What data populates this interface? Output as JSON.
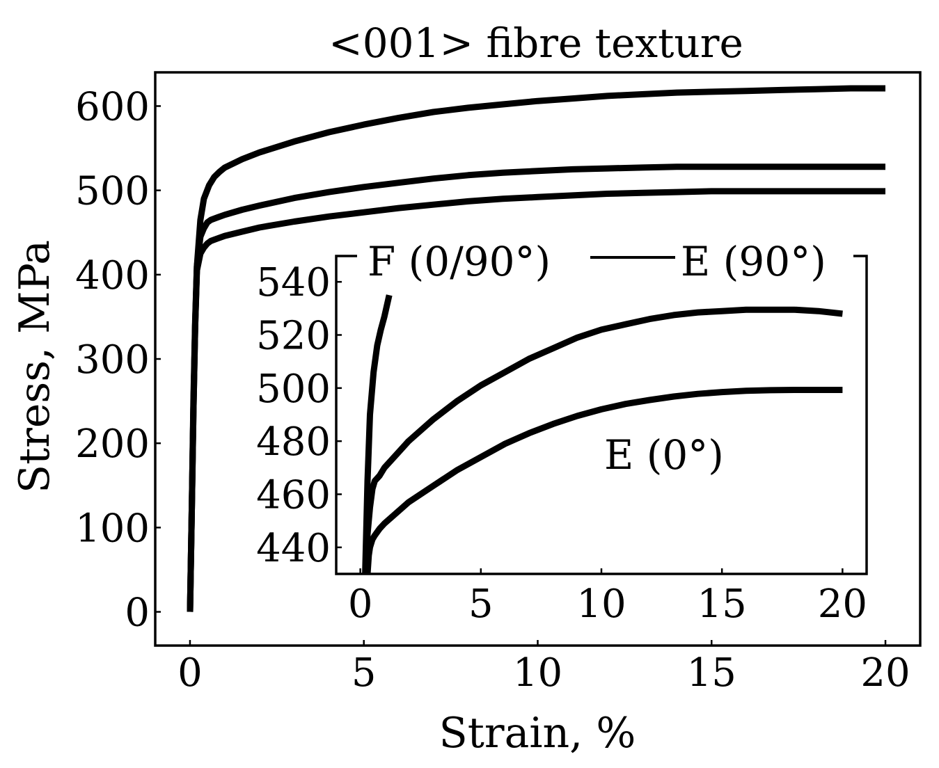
{
  "chart_data": [
    {
      "type": "line",
      "title": "<001> fibre texture",
      "xlabel": "Strain, %",
      "ylabel": "Stress, MPa",
      "xlim": [
        -1,
        21
      ],
      "ylim": [
        -40,
        640
      ],
      "xticks": [
        0,
        5,
        10,
        15,
        20
      ],
      "yticks": [
        0,
        100,
        200,
        300,
        400,
        500,
        600
      ],
      "grid": false,
      "series": [
        {
          "x": [
            0,
            0.05,
            0.1,
            0.15,
            0.2,
            0.3,
            0.4,
            0.55,
            0.7,
            0.85,
            1.0,
            1.5,
            2,
            3,
            4,
            5,
            6,
            7,
            8,
            9,
            10,
            11,
            12,
            13,
            14,
            15,
            16,
            17,
            18,
            19,
            20
          ],
          "y": [
            0,
            120,
            250,
            345,
            410,
            465,
            490,
            506,
            516,
            522,
            527,
            537,
            545,
            558,
            569,
            578,
            586,
            593,
            598,
            602,
            606,
            609,
            612,
            614,
            616,
            617,
            618,
            619,
            620,
            621,
            621
          ]
        },
        {
          "x": [
            0,
            0.05,
            0.1,
            0.15,
            0.2,
            0.3,
            0.4,
            0.5,
            0.6,
            0.8,
            1,
            1.5,
            2,
            3,
            4,
            5,
            6,
            7,
            8,
            9,
            10,
            11,
            12,
            13,
            14,
            15,
            16,
            17,
            18,
            19,
            20
          ],
          "y": [
            0,
            120,
            240,
            340,
            410,
            445,
            455,
            462,
            465,
            468,
            471,
            477,
            482,
            491,
            498,
            504,
            509,
            514,
            518,
            521,
            523,
            525,
            526,
            527,
            528,
            528,
            528,
            528,
            528,
            528,
            528
          ]
        },
        {
          "x": [
            0,
            0.05,
            0.1,
            0.15,
            0.2,
            0.3,
            0.4,
            0.5,
            0.6,
            0.8,
            1,
            1.5,
            2,
            3,
            4,
            5,
            6,
            7,
            8,
            9,
            10,
            11,
            12,
            13,
            14,
            15,
            16,
            17,
            18,
            19,
            20
          ],
          "y": [
            0,
            120,
            240,
            340,
            405,
            425,
            432,
            437,
            440,
            443,
            446,
            451,
            456,
            463,
            469,
            474,
            479,
            483,
            487,
            490,
            492,
            494,
            496,
            497,
            498,
            499,
            499,
            499,
            499,
            499,
            499
          ]
        }
      ]
    },
    {
      "type": "line",
      "xlim": [
        -1,
        21
      ],
      "ylim": [
        430,
        550
      ],
      "xticks": [
        0,
        5,
        10,
        15,
        20
      ],
      "yticks": [
        440,
        460,
        480,
        500,
        520,
        540
      ],
      "grid": false,
      "legend": {
        "position": "top",
        "entries": [
          "F (0/90°)",
          "E (90°)"
        ]
      },
      "annotations": [
        "E (0°)"
      ],
      "series": [
        {
          "name": "F (0/90°)",
          "x": [
            0.2,
            0.3,
            0.4,
            0.55,
            0.7,
            0.85,
            1.0,
            1.2
          ],
          "y": [
            430,
            465,
            490,
            506,
            516,
            522,
            527,
            535
          ]
        },
        {
          "name": "E (90°)",
          "x": [
            0.25,
            0.3,
            0.4,
            0.5,
            0.6,
            0.8,
            1,
            1.5,
            2,
            3,
            4,
            5,
            6,
            7,
            8,
            9,
            10,
            11,
            12,
            13,
            14,
            15,
            16,
            17,
            18,
            19,
            20
          ],
          "y": [
            430,
            445,
            455,
            462,
            465,
            467,
            470,
            475,
            480,
            488,
            495,
            501,
            506,
            511,
            515,
            519,
            522,
            524,
            526,
            527.5,
            528.5,
            529,
            529.5,
            529.5,
            529.5,
            529,
            528
          ]
        },
        {
          "name": "E (0°)",
          "x": [
            0.3,
            0.35,
            0.4,
            0.5,
            0.6,
            0.8,
            1,
            1.5,
            2,
            3,
            4,
            5,
            6,
            7,
            8,
            9,
            10,
            11,
            12,
            13,
            14,
            15,
            16,
            17,
            18,
            19,
            20
          ],
          "y": [
            430,
            437,
            440,
            443,
            444.5,
            447,
            449,
            453,
            457,
            463,
            469,
            474,
            479,
            483,
            486.5,
            489.5,
            492,
            494,
            495.5,
            496.8,
            497.8,
            498.5,
            499,
            499.2,
            499.3,
            499.3,
            499.3
          ]
        }
      ]
    }
  ]
}
